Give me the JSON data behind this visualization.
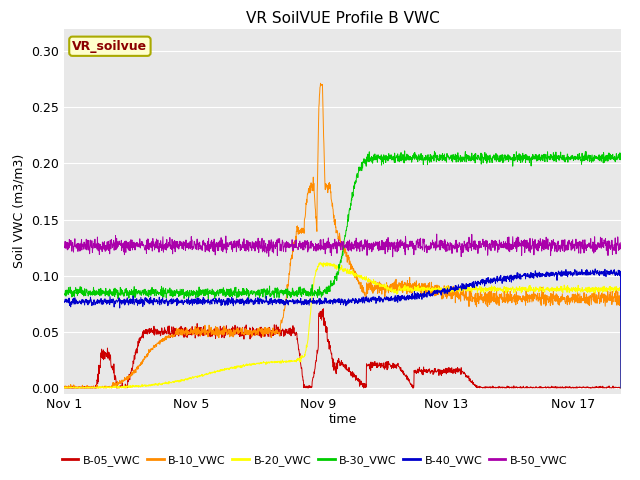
{
  "title": "VR SoilVUE Profile B VWC",
  "ylabel": "Soil VWC (m3/m3)",
  "xlabel": "time",
  "ylim": [
    -0.005,
    0.32
  ],
  "xlim": [
    0,
    17.5
  ],
  "fig_facecolor": "#ffffff",
  "plot_bg_color": "#e8e8e8",
  "series": {
    "B-05_VWC": {
      "color": "#cc0000"
    },
    "B-10_VWC": {
      "color": "#ff8c00"
    },
    "B-20_VWC": {
      "color": "#ffff00"
    },
    "B-30_VWC": {
      "color": "#00cc00"
    },
    "B-40_VWC": {
      "color": "#0000cc"
    },
    "B-50_VWC": {
      "color": "#aa00aa"
    }
  },
  "xticks": [
    0,
    4,
    8,
    12,
    16
  ],
  "xtick_labels": [
    "Nov 1",
    "Nov 5",
    "Nov 9",
    "Nov 13",
    "Nov 17"
  ],
  "yticks": [
    0.0,
    0.05,
    0.1,
    0.15,
    0.2,
    0.25,
    0.3
  ],
  "legend_box_facecolor": "#ffffcc",
  "legend_box_edgecolor": "#aaaa00",
  "legend_text": "VR_soilvue",
  "title_fontsize": 11,
  "axis_fontsize": 9,
  "tick_fontsize": 9,
  "legend_fontsize": 8
}
